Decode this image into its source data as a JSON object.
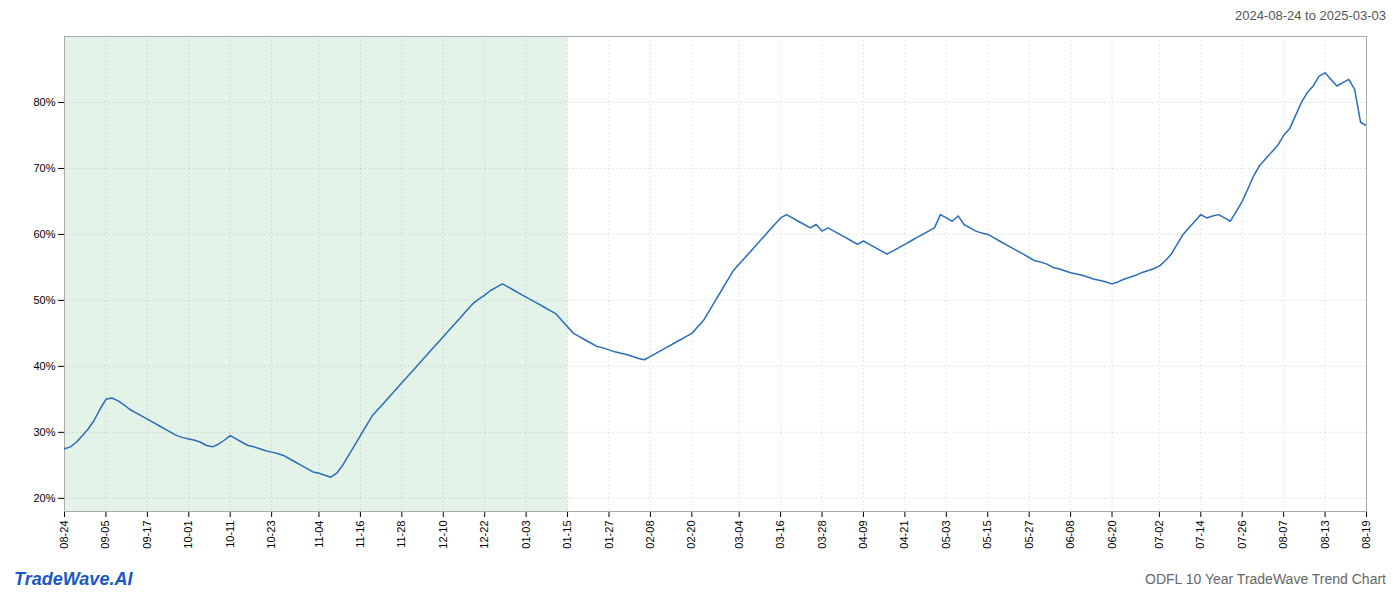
{
  "chart_data": {
    "type": "line",
    "title": "ODFL 10 Year TradeWave Trend Chart",
    "subtitle": "2024-08-24 to 2025-03-03",
    "annotations": [
      {
        "text": "TradeWave.AI",
        "color": "#1a56c4"
      }
    ],
    "color": "#2b6cb8",
    "grid": true,
    "ylim": [
      18,
      90
    ],
    "yticks": [
      {
        "value": 20,
        "label": "20%"
      },
      {
        "value": 30,
        "label": "30%"
      },
      {
        "value": 40,
        "label": "40%"
      },
      {
        "value": 50,
        "label": "50%"
      },
      {
        "value": 60,
        "label": "60%"
      },
      {
        "value": 70,
        "label": "70%"
      },
      {
        "value": 80,
        "label": "80%"
      }
    ],
    "shaded_region": {
      "x": [
        0,
        85.085
      ],
      "color": "#d8eedd"
    },
    "categories": [
      "08-24",
      null,
      null,
      null,
      null,
      null,
      null,
      "09-05",
      null,
      null,
      null,
      null,
      null,
      null,
      "09-17",
      null,
      null,
      null,
      null,
      null,
      null,
      "10-01",
      null,
      null,
      null,
      null,
      null,
      null,
      "10-11",
      null,
      null,
      null,
      null,
      null,
      null,
      "10-23",
      null,
      null,
      null,
      null,
      null,
      null,
      null,
      "11-04",
      null,
      null,
      null,
      null,
      null,
      null,
      "11-16",
      null,
      null,
      null,
      null,
      null,
      null,
      "11-28",
      null,
      null,
      null,
      null,
      null,
      null,
      "12-10",
      null,
      null,
      null,
      null,
      null,
      null,
      "12-22",
      null,
      null,
      null,
      null,
      null,
      null,
      "01-03",
      null,
      null,
      null,
      null,
      null,
      null,
      "01-15",
      null,
      null,
      null,
      null,
      null,
      null,
      "01-27",
      null,
      null,
      null,
      null,
      null,
      null,
      "02-08",
      null,
      null,
      null,
      null,
      null,
      null,
      "02-20",
      null,
      null,
      null,
      null,
      null,
      null,
      null,
      "03-04",
      null,
      null,
      null,
      null,
      null,
      null,
      "03-16",
      null,
      null,
      null,
      null,
      null,
      null,
      "03-28",
      null,
      null,
      null,
      null,
      null,
      null,
      "04-09",
      null,
      null,
      null,
      null,
      null,
      null,
      "04-21",
      null,
      null,
      null,
      null,
      null,
      null,
      "05-03",
      null,
      null,
      null,
      null,
      null,
      null,
      "05-15",
      null,
      null,
      null,
      null,
      null,
      null,
      "05-27",
      null,
      null,
      null,
      null,
      null,
      null,
      "06-08",
      null,
      null,
      null,
      null,
      null,
      null,
      "06-20",
      null,
      null,
      null,
      null,
      null,
      null,
      null,
      "07-02",
      null,
      null,
      null,
      null,
      null,
      null,
      "07-14",
      null,
      null,
      null,
      null,
      null,
      null,
      "07-26",
      null,
      null,
      null,
      null,
      null,
      null,
      "08-07",
      null,
      null,
      null,
      null,
      null,
      null,
      "08-13",
      null,
      null,
      null,
      null,
      null,
      null,
      "08-19"
    ],
    "values": [
      27.5,
      27.8,
      28.5,
      29.5,
      30.5,
      31.8,
      33.5,
      35.0,
      35.2,
      34.8,
      34.2,
      33.5,
      33.0,
      32.5,
      32.0,
      31.5,
      31.0,
      30.5,
      30.0,
      29.5,
      29.2,
      29.0,
      28.8,
      28.5,
      28.0,
      27.8,
      28.2,
      28.8,
      29.5,
      29.0,
      28.5,
      28.0,
      27.8,
      27.5,
      27.2,
      27.0,
      26.8,
      26.5,
      26.0,
      25.5,
      25.0,
      24.5,
      24.0,
      23.8,
      23.5,
      23.2,
      23.8,
      25.0,
      26.5,
      28.0,
      29.5,
      31.0,
      32.5,
      33.5,
      34.5,
      35.5,
      36.5,
      37.5,
      38.5,
      39.5,
      40.5,
      41.5,
      42.5,
      43.5,
      44.5,
      45.5,
      46.5,
      47.5,
      48.5,
      49.5,
      50.2,
      50.8,
      51.5,
      52.0,
      52.5,
      52.0,
      51.5,
      51.0,
      50.5,
      50.0,
      49.5,
      49.0,
      48.5,
      48.0,
      47.0,
      46.0,
      45.0,
      44.5,
      44.0,
      43.5,
      43.0,
      42.8,
      42.5,
      42.2,
      42.0,
      41.8,
      41.5,
      41.2,
      41.0,
      41.5,
      42.0,
      42.5,
      43.0,
      43.5,
      44.0,
      44.5,
      45.0,
      46.0,
      47.0,
      48.5,
      50.0,
      51.5,
      53.0,
      54.5,
      55.5,
      56.5,
      57.5,
      58.5,
      59.5,
      60.5,
      61.5,
      62.5,
      63.0,
      62.5,
      62.0,
      61.5,
      61.0,
      61.5,
      60.5,
      61.0,
      60.5,
      60.0,
      59.5,
      59.0,
      58.5,
      59.0,
      58.5,
      58.0,
      57.5,
      57.0,
      57.5,
      58.0,
      58.5,
      59.0,
      59.5,
      60.0,
      60.5,
      61.0,
      63.0,
      62.5,
      62.0,
      62.8,
      61.5,
      61.0,
      60.5,
      60.2,
      60.0,
      59.5,
      59.0,
      58.5,
      58.0,
      57.5,
      57.0,
      56.5,
      56.0,
      55.8,
      55.5,
      55.0,
      54.8,
      54.5,
      54.2,
      54.0,
      53.8,
      53.5,
      53.2,
      53.0,
      52.8,
      52.5,
      52.8,
      53.2,
      53.5,
      53.8,
      54.2,
      54.5,
      54.8,
      55.2,
      56.0,
      57.0,
      58.5,
      60.0,
      61.0,
      62.0,
      63.0,
      62.5,
      62.8,
      63.0,
      62.5,
      62.0,
      63.5,
      65.0,
      67.0,
      69.0,
      70.5,
      71.5,
      72.5,
      73.5,
      75.0,
      76.0,
      78.0,
      80.0,
      81.5,
      82.5,
      84.0,
      84.5,
      83.5,
      82.5,
      83.0,
      83.5,
      82.0,
      77.0,
      76.5
    ]
  }
}
